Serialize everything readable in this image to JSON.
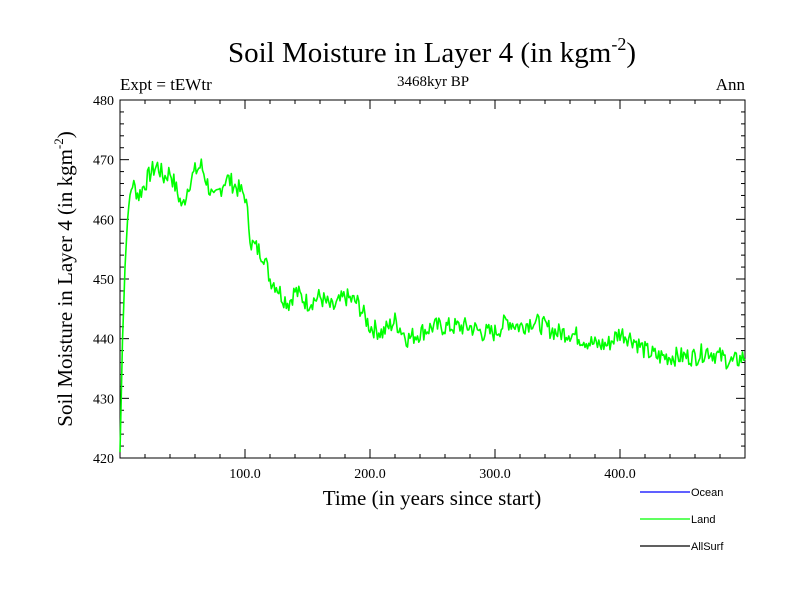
{
  "chart_data": {
    "type": "line",
    "title": "Soil Moisture in Layer 4 (in kgm",
    "title_sup": "-2",
    "title_close": ")",
    "subtitle_left": "Expt = tEWtr",
    "subtitle_center": "3468kyr BP",
    "subtitle_right": "Ann",
    "xlabel": "Time (in years since start)",
    "ylabel": "Soil Moisture in Layer 4 (in kgm",
    "ylabel_sup": "-2",
    "ylabel_close": ")",
    "xlim": [
      0,
      500
    ],
    "ylim": [
      420,
      480
    ],
    "xticks": [
      100,
      200,
      300,
      400
    ],
    "xtick_labels": [
      "100.0",
      "200.0",
      "300.0",
      "400.0"
    ],
    "yticks": [
      420,
      430,
      440,
      450,
      460,
      470,
      480
    ],
    "ytick_labels": [
      "420",
      "430",
      "440",
      "450",
      "460",
      "470",
      "480"
    ],
    "legend": [
      {
        "name": "Ocean",
        "color": "#0000ff"
      },
      {
        "name": "Land",
        "color": "#00ff00"
      },
      {
        "name": "AllSurf",
        "color": "#000000"
      }
    ],
    "series": [
      {
        "name": "Land",
        "color": "#00ff00",
        "x": [
          0,
          2,
          4,
          6,
          8,
          10,
          15,
          20,
          25,
          30,
          35,
          40,
          45,
          50,
          55,
          60,
          65,
          70,
          75,
          80,
          85,
          90,
          95,
          100,
          105,
          110,
          115,
          120,
          125,
          130,
          135,
          140,
          145,
          150,
          160,
          170,
          180,
          190,
          200,
          210,
          220,
          230,
          240,
          250,
          260,
          270,
          280,
          290,
          300,
          310,
          320,
          330,
          340,
          350,
          360,
          370,
          380,
          390,
          400,
          410,
          420,
          430,
          440,
          450,
          460,
          470,
          480,
          490,
          500
        ],
        "values": [
          421,
          440,
          452,
          460,
          464,
          466,
          464,
          466,
          468,
          469,
          467,
          468,
          465,
          462,
          466,
          468,
          469,
          466,
          463,
          465,
          467,
          466,
          465,
          464,
          456,
          455,
          454,
          450,
          449,
          447,
          446,
          448,
          447,
          446,
          447,
          445,
          447,
          446,
          442,
          441,
          443,
          440,
          441,
          442,
          442,
          442,
          442,
          441,
          441,
          443,
          442,
          443,
          442,
          441,
          441,
          440,
          439,
          439,
          441,
          440,
          438,
          437,
          437,
          437,
          437,
          438,
          437,
          436,
          437
        ]
      }
    ]
  }
}
